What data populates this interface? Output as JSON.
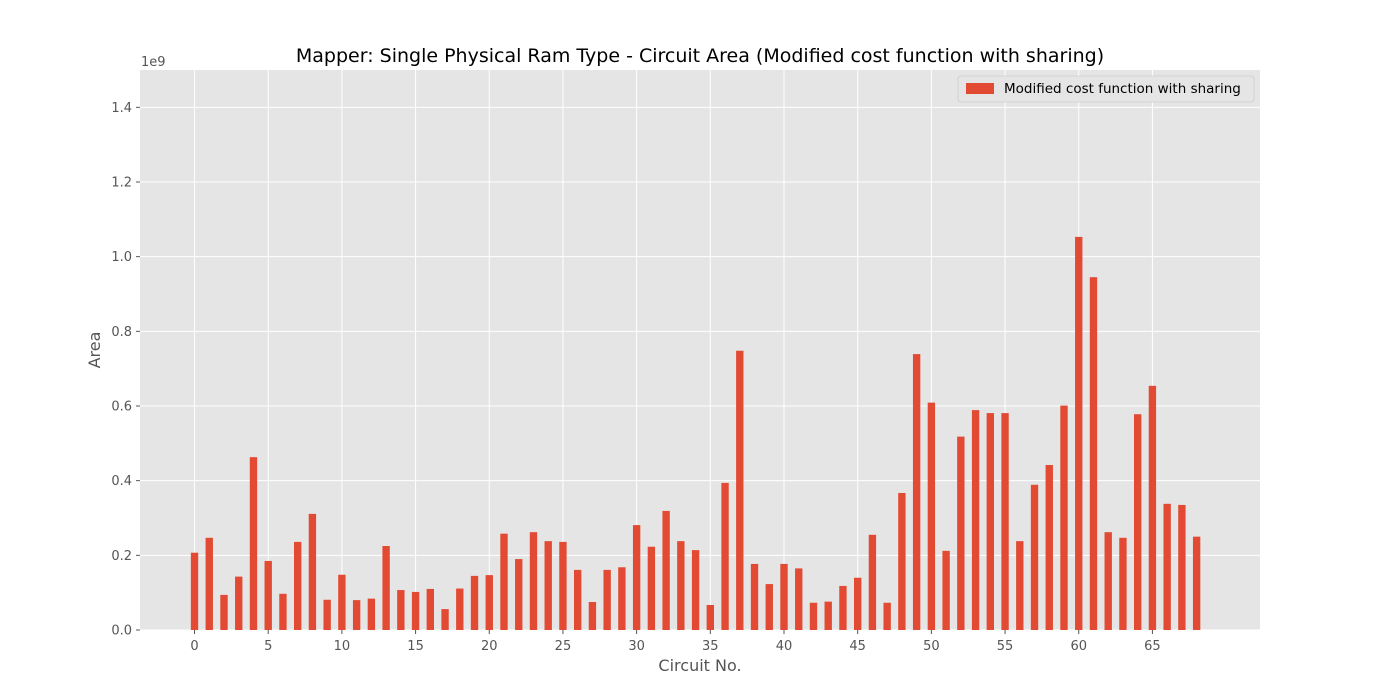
{
  "chart_data": {
    "type": "bar",
    "title": "Mapper: Single Physical Ram Type - Circuit Area (Modified cost function with sharing)",
    "xlabel": "Circuit No.",
    "ylabel": "Area",
    "offset_label": "1e9",
    "scale": 1000000000,
    "ylim": [
      0,
      1.5
    ],
    "xlim": [
      -3.7,
      72.3
    ],
    "xticks": [
      0,
      5,
      10,
      15,
      20,
      25,
      30,
      35,
      40,
      45,
      50,
      55,
      60,
      65
    ],
    "yticks": [
      0.0,
      0.2,
      0.4,
      0.6,
      0.8,
      1.0,
      1.2,
      1.4
    ],
    "ytick_labels": [
      "0.0",
      "0.2",
      "0.4",
      "0.6",
      "0.8",
      "1.0",
      "1.2",
      "1.4"
    ],
    "grid": true,
    "legend_position": "top-right",
    "colors": {
      "bar": "#E24A33",
      "plot_background": "#E5E5E5",
      "grid": "#FFFFFF"
    },
    "series": [
      {
        "name": "Modified cost function with sharing",
        "x": [
          0,
          1,
          2,
          3,
          4,
          5,
          6,
          7,
          8,
          9,
          10,
          11,
          12,
          13,
          14,
          15,
          16,
          17,
          18,
          19,
          20,
          21,
          22,
          23,
          24,
          25,
          26,
          27,
          28,
          29,
          30,
          31,
          32,
          33,
          34,
          35,
          36,
          37,
          38,
          39,
          40,
          41,
          42,
          43,
          44,
          45,
          46,
          47,
          48,
          49,
          50,
          51,
          52,
          53,
          54,
          55,
          56,
          57,
          58,
          59,
          60,
          61,
          62,
          63,
          64,
          65,
          66,
          67,
          68
        ],
        "values": [
          0.207,
          0.247,
          0.094,
          0.143,
          0.463,
          0.185,
          0.097,
          0.236,
          0.311,
          0.081,
          0.148,
          0.08,
          0.084,
          0.225,
          0.107,
          0.102,
          0.11,
          0.056,
          0.111,
          0.145,
          0.147,
          0.258,
          0.19,
          0.262,
          0.238,
          0.236,
          0.161,
          0.075,
          0.161,
          0.168,
          0.281,
          0.223,
          0.319,
          0.238,
          0.214,
          0.067,
          0.394,
          0.748,
          0.177,
          0.123,
          0.177,
          0.165,
          0.073,
          0.076,
          0.118,
          0.14,
          0.255,
          0.073,
          0.367,
          0.739,
          0.609,
          0.212,
          0.518,
          0.589,
          0.581,
          0.581,
          0.238,
          0.389,
          0.442,
          0.601,
          1.053,
          0.945,
          0.262,
          0.247,
          0.578,
          0.654,
          0.338,
          0.335,
          0.25
        ]
      }
    ]
  }
}
